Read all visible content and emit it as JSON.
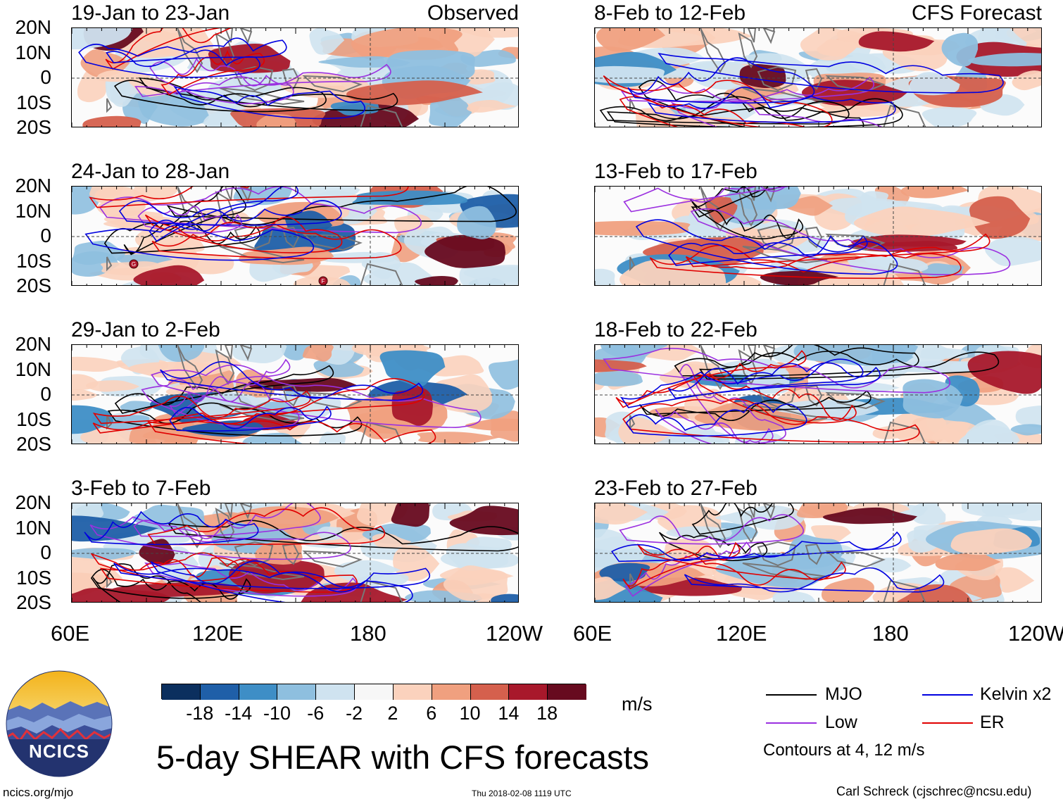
{
  "panels": [
    {
      "title": "19-Jan to 23-Jan",
      "tag": "Observed",
      "col": 0,
      "row": 0
    },
    {
      "title": "24-Jan to 28-Jan",
      "tag": "",
      "col": 0,
      "row": 1
    },
    {
      "title": "29-Jan to 2-Feb",
      "tag": "",
      "col": 0,
      "row": 2
    },
    {
      "title": "3-Feb to 7-Feb",
      "tag": "",
      "col": 0,
      "row": 3
    },
    {
      "title": "8-Feb to 12-Feb",
      "tag": "CFS Forecast",
      "col": 1,
      "row": 0
    },
    {
      "title": "13-Feb to 17-Feb",
      "tag": "",
      "col": 1,
      "row": 1
    },
    {
      "title": "18-Feb to 22-Feb",
      "tag": "",
      "col": 1,
      "row": 2
    },
    {
      "title": "23-Feb to 27-Feb",
      "tag": "",
      "col": 1,
      "row": 3
    }
  ],
  "lat_labels": [
    "20N",
    "10N",
    "0",
    "10S",
    "20S"
  ],
  "lon_labels_left": [
    "60E",
    "120E",
    "180",
    "120W"
  ],
  "lon_labels_right": [
    "60E",
    "120E",
    "180",
    "120W"
  ],
  "colorbar": {
    "labels": [
      "-18",
      "-14",
      "-10",
      "-6",
      "-2",
      "2",
      "6",
      "10",
      "14",
      "18"
    ],
    "colors": [
      "#0b2f5e",
      "#1f5fa8",
      "#3e8ec6",
      "#8ebfdf",
      "#cfe3f0",
      "#f7f7f7",
      "#fbd2bd",
      "#f0a07f",
      "#d5604d",
      "#a8182b",
      "#670a1f"
    ],
    "units": "m/s"
  },
  "legend": {
    "items": [
      {
        "label": "MJO",
        "color": "#000000"
      },
      {
        "label": "Kelvin x2",
        "color": "#0000e0"
      },
      {
        "label": "Low",
        "color": "#9b30e0"
      },
      {
        "label": "ER",
        "color": "#e00000"
      }
    ],
    "note": "Contours at 4, 12 m/s"
  },
  "main_title": "5-day SHEAR with CFS forecasts",
  "logo_text": "NCICS",
  "footer": {
    "url": "ncics.org/mjo",
    "timestamp": "Thu 2018-02-08 1119 UTC",
    "credit": "Carl Schreck (cjschrec@ncsu.edu)"
  },
  "storm_markers": [
    "G",
    "F"
  ]
}
